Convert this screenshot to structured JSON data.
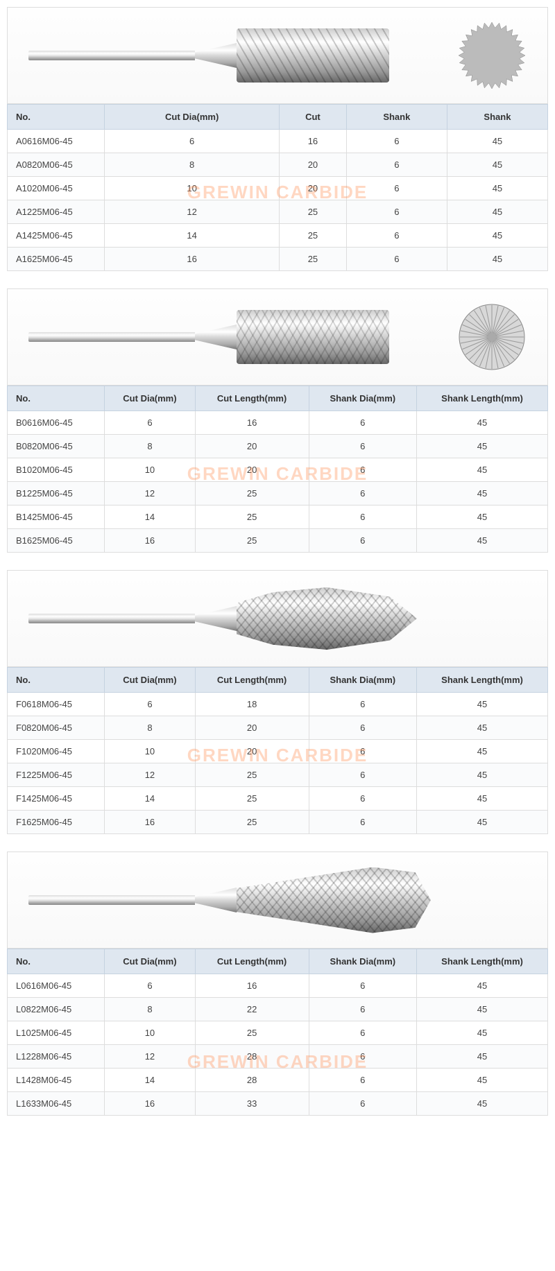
{
  "watermark_text": "GREWIN CARBIDE",
  "watermark_color": "rgba(255,140,80,0.35)",
  "header_bg": "#dfe7f0",
  "border_color": "#c5d2e0",
  "sections": [
    {
      "id": "A",
      "image_type": "cylinder_single",
      "end_view": "saw",
      "columns": [
        "No.",
        "Cut Dia(mm)",
        "Cut",
        "Shank",
        "Shank"
      ],
      "rows": [
        [
          "A0616M06-45",
          "6",
          "16",
          "6",
          "45"
        ],
        [
          "A0820M06-45",
          "8",
          "20",
          "6",
          "45"
        ],
        [
          "A1020M06-45",
          "10",
          "20",
          "6",
          "45"
        ],
        [
          "A1225M06-45",
          "12",
          "25",
          "6",
          "45"
        ],
        [
          "A1425M06-45",
          "14",
          "25",
          "6",
          "45"
        ],
        [
          "A1625M06-45",
          "16",
          "25",
          "6",
          "45"
        ]
      ],
      "watermark_row": 2
    },
    {
      "id": "B",
      "image_type": "cylinder_double",
      "end_view": "radial",
      "columns": [
        "No.",
        "Cut Dia(mm)",
        "Cut Length(mm)",
        "Shank Dia(mm)",
        "Shank Length(mm)"
      ],
      "rows": [
        [
          "B0616M06-45",
          "6",
          "16",
          "6",
          "45"
        ],
        [
          "B0820M06-45",
          "8",
          "20",
          "6",
          "45"
        ],
        [
          "B1020M06-45",
          "10",
          "20",
          "6",
          "45"
        ],
        [
          "B1225M06-45",
          "12",
          "25",
          "6",
          "45"
        ],
        [
          "B1425M06-45",
          "14",
          "25",
          "6",
          "45"
        ],
        [
          "B1625M06-45",
          "16",
          "25",
          "6",
          "45"
        ]
      ],
      "watermark_row": 2
    },
    {
      "id": "F",
      "image_type": "tree",
      "end_view": "none",
      "columns": [
        "No.",
        "Cut Dia(mm)",
        "Cut Length(mm)",
        "Shank Dia(mm)",
        "Shank Length(mm)"
      ],
      "rows": [
        [
          "F0618M06-45",
          "6",
          "18",
          "6",
          "45"
        ],
        [
          "F0820M06-45",
          "8",
          "20",
          "6",
          "45"
        ],
        [
          "F1020M06-45",
          "10",
          "20",
          "6",
          "45"
        ],
        [
          "F1225M06-45",
          "12",
          "25",
          "6",
          "45"
        ],
        [
          "F1425M06-45",
          "14",
          "25",
          "6",
          "45"
        ],
        [
          "F1625M06-45",
          "16",
          "25",
          "6",
          "45"
        ]
      ],
      "watermark_row": 2
    },
    {
      "id": "L",
      "image_type": "cone",
      "end_view": "none",
      "columns": [
        "No.",
        "Cut Dia(mm)",
        "Cut Length(mm)",
        "Shank Dia(mm)",
        "Shank Length(mm)"
      ],
      "rows": [
        [
          "L0616M06-45",
          "6",
          "16",
          "6",
          "45"
        ],
        [
          "L0822M06-45",
          "8",
          "22",
          "6",
          "45"
        ],
        [
          "L1025M06-45",
          "10",
          "25",
          "6",
          "45"
        ],
        [
          "L1228M06-45",
          "12",
          "28",
          "6",
          "45"
        ],
        [
          "L1428M06-45",
          "14",
          "28",
          "6",
          "45"
        ],
        [
          "L1633M06-45",
          "16",
          "33",
          "6",
          "45"
        ]
      ],
      "watermark_row": 3
    }
  ]
}
